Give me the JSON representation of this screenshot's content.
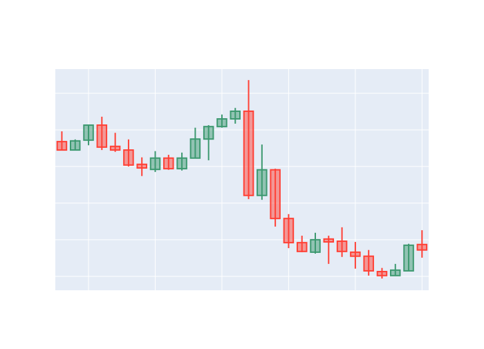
{
  "chart_data": {
    "type": "candlestick",
    "x": [
      0,
      1,
      2,
      3,
      4,
      5,
      6,
      7,
      8,
      9,
      10,
      11,
      12,
      13,
      14,
      15,
      16,
      17,
      18,
      19,
      20,
      21,
      22,
      23,
      24,
      25,
      26,
      27
    ],
    "open": [
      3.68,
      3.45,
      3.72,
      4.13,
      3.55,
      3.45,
      3.06,
      2.92,
      3.23,
      2.94,
      3.23,
      3.75,
      4.09,
      4.3,
      4.51,
      2.21,
      2.91,
      1.58,
      0.92,
      0.66,
      1.02,
      0.96,
      0.66,
      0.55,
      0.13,
      0.02,
      0.15,
      0.87
    ],
    "high": [
      3.96,
      3.74,
      4.13,
      4.36,
      3.92,
      3.74,
      3.25,
      3.42,
      3.32,
      3.38,
      4.06,
      4.13,
      4.42,
      4.6,
      5.36,
      3.6,
      2.94,
      1.7,
      1.11,
      1.19,
      1.11,
      1.34,
      0.94,
      0.72,
      0.23,
      0.34,
      0.89,
      1.26
    ],
    "low": [
      3.45,
      3.45,
      3.58,
      3.45,
      3.4,
      3.0,
      2.74,
      2.85,
      2.91,
      2.89,
      3.23,
      3.17,
      4.06,
      4.17,
      2.11,
      2.09,
      1.36,
      0.77,
      0.66,
      0.62,
      0.34,
      0.53,
      0.21,
      0.02,
      -0.06,
      0.02,
      0.15,
      0.51
    ],
    "close": [
      3.45,
      3.7,
      4.13,
      3.53,
      3.45,
      3.04,
      2.96,
      3.23,
      2.94,
      3.23,
      3.75,
      4.09,
      4.3,
      4.51,
      2.21,
      2.91,
      1.58,
      0.92,
      0.68,
      1.0,
      0.94,
      0.68,
      0.55,
      0.15,
      0.02,
      0.17,
      0.85,
      0.72
    ],
    "increasing_color": "#3d9970",
    "decreasing_color": "#ff4136",
    "xlim": [
      -0.49,
      27.5
    ],
    "xticks": [
      2,
      7,
      12,
      17,
      22,
      27
    ],
    "ylim": [
      -0.38,
      5.66
    ],
    "yticks": [
      0,
      1,
      2,
      3,
      4,
      5
    ],
    "grid": true
  }
}
